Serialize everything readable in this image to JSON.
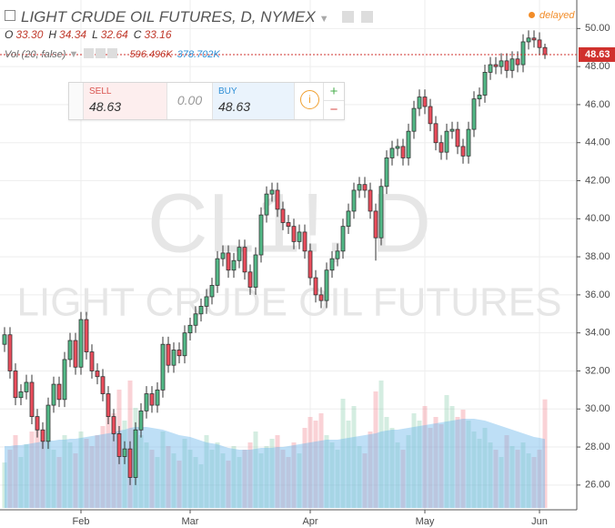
{
  "header": {
    "title": "LIGHT CRUDE OIL FUTURES, D, NYMEX",
    "status": "delayed",
    "ohlc": [
      {
        "key": "O",
        "value": "33.30"
      },
      {
        "key": "H",
        "value": "34.34"
      },
      {
        "key": "L",
        "value": "32.64"
      },
      {
        "key": "C",
        "value": "33.16"
      }
    ],
    "volume_study": "Vol (20, false)"
  },
  "trade": {
    "sell_label": "SELL",
    "spread": "0.00",
    "buy_label": "BUY",
    "plus": "+",
    "minus": "−",
    "info": "i"
  },
  "chart_data": {
    "type": "candlestick",
    "watermark": "CL1!, D",
    "watermark_subtitle": "LIGHT CRUDE OIL FUTURES",
    "categories": [
      null,
      null,
      null,
      null,
      null,
      null,
      null,
      null,
      null,
      null,
      null,
      null,
      null,
      null,
      "Feb",
      null,
      null,
      null,
      null,
      null,
      null,
      null,
      null,
      null,
      null,
      null,
      null,
      null,
      null,
      null,
      null,
      null,
      null,
      null,
      "Mar",
      null,
      null,
      null,
      null,
      null,
      null,
      null,
      null,
      null,
      null,
      null,
      null,
      null,
      null,
      null,
      null,
      null,
      null,
      null,
      null,
      null,
      "Apr",
      null,
      null,
      null,
      null,
      null,
      null,
      null,
      null,
      null,
      null,
      null,
      null,
      null,
      null,
      null,
      null,
      null,
      null,
      null,
      null,
      "May",
      null,
      null,
      null,
      null,
      null,
      null,
      null,
      null,
      null,
      null,
      null,
      null,
      null,
      null,
      null,
      null,
      null,
      null,
      null,
      null,
      "Jun",
      null
    ],
    "open": [
      33.4,
      33.9,
      32.0,
      30.6,
      30.9,
      31.4,
      29.6,
      28.9,
      28.3,
      30.2,
      31.3,
      30.5,
      32.6,
      33.6,
      32.2,
      34.7,
      33.0,
      32.0,
      31.7,
      30.8,
      29.6,
      28.7,
      27.5,
      27.9,
      26.4,
      28.9,
      29.9,
      30.8,
      30.2,
      31.0,
      33.4,
      32.3,
      33.1,
      32.8,
      34.0,
      34.4,
      35.0,
      35.4,
      35.9,
      36.5,
      37.9,
      38.2,
      37.3,
      37.8,
      38.5,
      37.2,
      36.4,
      38.1,
      40.2,
      41.3,
      41.5,
      40.5,
      39.8,
      39.6,
      38.8,
      39.3,
      38.3,
      36.9,
      36.0,
      35.7,
      37.3,
      37.9,
      38.3,
      39.6,
      40.4,
      41.5,
      41.8,
      41.5,
      40.4,
      39.0,
      41.7,
      43.2,
      43.7,
      43.8,
      43.2,
      44.6,
      45.8,
      46.4,
      45.9,
      45.0,
      44.0,
      43.5,
      44.6,
      44.7,
      43.8,
      43.3,
      44.7,
      46.3,
      46.5,
      47.7,
      48.1,
      48.0,
      48.3,
      47.8,
      48.4,
      48.1,
      49.3,
      49.5,
      49.4,
      49.0
    ],
    "high": [
      34.3,
      34.3,
      32.4,
      31.3,
      31.8,
      31.8,
      30.0,
      29.3,
      30.6,
      31.7,
      31.7,
      33.0,
      34.0,
      34.0,
      35.1,
      35.1,
      33.4,
      32.4,
      32.1,
      31.2,
      30.0,
      29.1,
      28.3,
      28.3,
      29.3,
      30.3,
      31.2,
      31.2,
      31.4,
      33.8,
      33.8,
      33.5,
      33.5,
      34.4,
      34.8,
      35.4,
      35.8,
      36.3,
      36.9,
      38.3,
      38.6,
      38.6,
      38.2,
      38.9,
      38.9,
      37.6,
      38.5,
      40.6,
      41.7,
      41.9,
      41.9,
      40.9,
      40.2,
      40.0,
      39.7,
      39.7,
      38.7,
      37.3,
      36.4,
      37.7,
      38.3,
      38.7,
      40.0,
      40.8,
      41.9,
      42.2,
      42.2,
      41.9,
      40.8,
      42.1,
      43.6,
      44.1,
      44.2,
      44.2,
      45.0,
      46.2,
      46.8,
      46.8,
      46.3,
      45.4,
      44.4,
      45.0,
      45.1,
      45.1,
      44.2,
      45.1,
      46.7,
      46.9,
      48.1,
      48.5,
      48.5,
      48.7,
      48.7,
      48.8,
      48.8,
      49.7,
      49.9,
      49.9,
      49.8,
      49.2
    ],
    "low": [
      33.0,
      31.6,
      30.2,
      30.2,
      30.5,
      29.2,
      28.5,
      27.9,
      27.9,
      29.8,
      30.1,
      30.1,
      32.2,
      31.8,
      31.8,
      32.6,
      31.6,
      31.3,
      30.4,
      29.2,
      28.3,
      27.1,
      27.1,
      26.0,
      26.0,
      28.5,
      29.5,
      29.8,
      29.8,
      30.6,
      31.9,
      31.9,
      32.4,
      32.4,
      33.6,
      34.0,
      34.6,
      35.0,
      35.5,
      36.1,
      37.5,
      36.9,
      36.9,
      37.4,
      36.8,
      36.0,
      36.0,
      37.7,
      39.8,
      40.9,
      40.1,
      39.4,
      39.2,
      38.4,
      38.4,
      37.9,
      36.5,
      35.6,
      35.3,
      35.3,
      36.9,
      37.5,
      37.9,
      39.2,
      40.0,
      41.1,
      41.1,
      40.0,
      37.8,
      38.6,
      41.3,
      42.8,
      43.3,
      42.8,
      42.8,
      44.2,
      45.4,
      45.5,
      44.6,
      43.6,
      43.1,
      43.1,
      44.2,
      43.4,
      42.9,
      42.9,
      44.3,
      45.9,
      46.1,
      47.3,
      47.6,
      47.6,
      47.4,
      47.4,
      47.7,
      47.7,
      48.9,
      49.0,
      48.6,
      48.4
    ],
    "close": [
      33.9,
      32.0,
      30.6,
      30.9,
      31.4,
      29.6,
      28.9,
      28.3,
      30.2,
      31.3,
      30.5,
      32.6,
      33.6,
      32.2,
      34.7,
      33.0,
      32.0,
      31.7,
      30.8,
      29.6,
      28.7,
      27.5,
      27.9,
      26.4,
      28.9,
      29.9,
      30.8,
      30.2,
      31.0,
      33.4,
      32.3,
      33.1,
      32.8,
      34.0,
      34.4,
      35.0,
      35.4,
      35.9,
      36.5,
      37.9,
      38.2,
      37.3,
      37.8,
      38.5,
      37.2,
      36.4,
      38.1,
      40.2,
      41.3,
      41.5,
      40.5,
      39.8,
      39.6,
      38.8,
      39.3,
      38.3,
      36.9,
      36.0,
      35.7,
      37.3,
      37.9,
      38.3,
      39.6,
      40.4,
      41.5,
      41.8,
      41.5,
      40.4,
      39.0,
      41.7,
      43.2,
      43.7,
      43.8,
      43.2,
      44.6,
      45.8,
      46.4,
      45.9,
      45.0,
      44.0,
      43.5,
      44.6,
      44.7,
      43.8,
      43.3,
      44.7,
      46.3,
      46.5,
      47.7,
      48.1,
      48.0,
      48.3,
      47.8,
      48.4,
      48.1,
      49.3,
      49.5,
      49.4,
      49.0,
      48.63
    ],
    "up_color": "#53b987",
    "down_color": "#eb4d5c",
    "last_price_color": "#d0312d",
    "volume": {
      "values": [
        250,
        320,
        400,
        280,
        350,
        420,
        500,
        380,
        440,
        320,
        280,
        400,
        360,
        300,
        420,
        380,
        340,
        400,
        450,
        500,
        520,
        650,
        480,
        700,
        550,
        400,
        360,
        320,
        280,
        420,
        340,
        300,
        260,
        380,
        320,
        280,
        240,
        400,
        320,
        360,
        300,
        260,
        340,
        280,
        320,
        360,
        420,
        300,
        340,
        380,
        400,
        320,
        280,
        360,
        300,
        440,
        500,
        480,
        520,
        400,
        360,
        320,
        600,
        480,
        560,
        340,
        300,
        420,
        640,
        700,
        500,
        440,
        360,
        320,
        400,
        520,
        480,
        560,
        440,
        500,
        460,
        620,
        560,
        500,
        540,
        480,
        420,
        380,
        440,
        360,
        320,
        280,
        400,
        340,
        320,
        360,
        300,
        280,
        320,
        596.496
      ],
      "value_labels": {
        "99": "596.496K"
      },
      "ma": [
        340,
        340,
        345,
        345,
        350,
        355,
        360,
        365,
        370,
        370,
        375,
        375,
        380,
        380,
        385,
        390,
        395,
        400,
        405,
        410,
        415,
        425,
        430,
        440,
        445,
        445,
        445,
        440,
        435,
        430,
        420,
        410,
        400,
        395,
        390,
        380,
        370,
        360,
        355,
        350,
        340,
        330,
        325,
        320,
        320,
        320,
        325,
        330,
        330,
        330,
        335,
        335,
        340,
        345,
        350,
        355,
        360,
        365,
        370,
        375,
        375,
        375,
        380,
        385,
        390,
        395,
        400,
        405,
        410,
        420,
        425,
        430,
        430,
        435,
        440,
        445,
        450,
        455,
        460,
        465,
        470,
        475,
        480,
        485,
        490,
        490,
        490,
        485,
        480,
        470,
        460,
        450,
        440,
        430,
        420,
        410,
        400,
        390,
        385,
        378.702
      ],
      "ma_value_labels": {
        "99": "378.702K"
      },
      "ma_color": "#6fb8ea"
    },
    "ylim": [
      24.7,
      51.5
    ],
    "yticks": [
      {
        "value": 26,
        "label": "26.00"
      },
      {
        "value": 28,
        "label": "28.00"
      },
      {
        "value": 30,
        "label": "30.00"
      },
      {
        "value": 32,
        "label": "32.00"
      },
      {
        "value": 34,
        "label": "34.00"
      },
      {
        "value": 36,
        "label": "36.00"
      },
      {
        "value": 38,
        "label": "38.00"
      },
      {
        "value": 40,
        "label": "40.00"
      },
      {
        "value": 42,
        "label": "42.00"
      },
      {
        "value": 44,
        "label": "44.00"
      },
      {
        "value": 46,
        "label": "46.00"
      },
      {
        "value": 48,
        "label": "48.00"
      },
      {
        "value": 50,
        "label": "50.00"
      }
    ],
    "grid": true
  }
}
